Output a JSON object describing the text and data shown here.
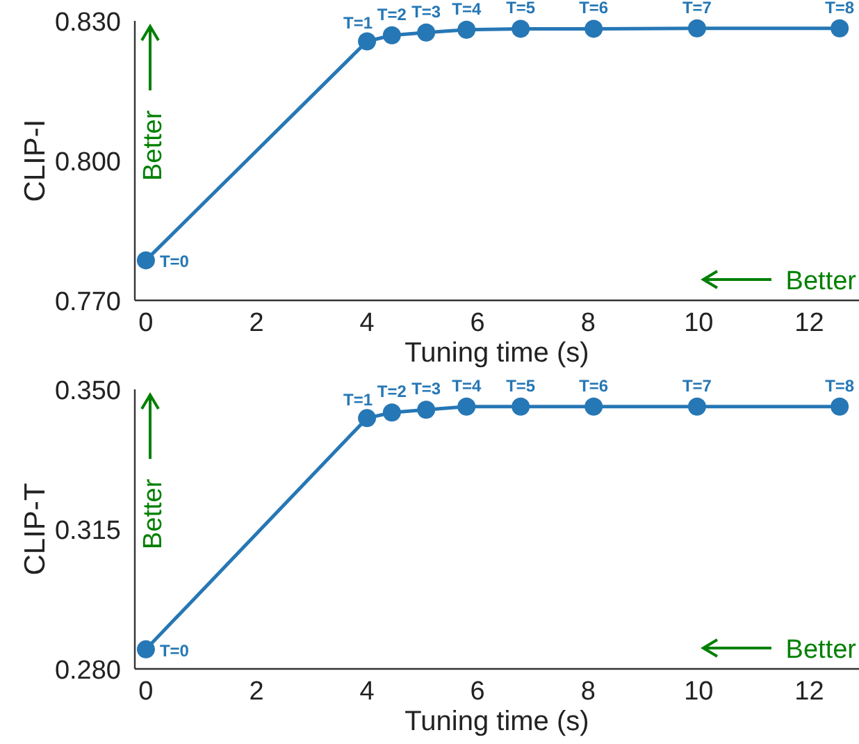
{
  "chart_data": [
    {
      "type": "line",
      "xlabel": "Tuning time (s)",
      "ylabel": "CLIP-I",
      "xlim": [
        -0.2,
        12.9
      ],
      "xticks": [
        0,
        2,
        4,
        6,
        8,
        10,
        12
      ],
      "ylim": [
        0.77,
        0.83
      ],
      "yticks": [
        {
          "value": 0.77,
          "label": "0.770"
        },
        {
          "value": 0.8,
          "label": "0.800"
        },
        {
          "value": 0.83,
          "label": "0.830"
        }
      ],
      "grid": false,
      "marker": "circle",
      "line_style": "solid",
      "annotations": [
        "Better",
        "Better",
        {
          "text": "T=0",
          "x": 0,
          "y": 0.7786
        },
        {
          "text": "T=1",
          "x": 4.0,
          "y": 0.8256
        },
        {
          "text": "T=2",
          "x": 4.45,
          "y": 0.8269
        },
        {
          "text": "T=3",
          "x": 5.07,
          "y": 0.8275
        },
        {
          "text": "T=4",
          "x": 5.8,
          "y": 0.8281
        },
        {
          "text": "T=5",
          "x": 6.78,
          "y": 0.8283
        },
        {
          "text": "T=6",
          "x": 8.1,
          "y": 0.8283
        },
        {
          "text": "T=7",
          "x": 9.97,
          "y": 0.8284
        },
        {
          "text": "T=8",
          "x": 12.55,
          "y": 0.8284
        }
      ],
      "series": [
        {
          "color": "#2677b5",
          "x": [
            0,
            4.0,
            4.45,
            5.07,
            5.8,
            6.78,
            8.1,
            9.97,
            12.55
          ],
          "values": [
            0.7786,
            0.8256,
            0.8269,
            0.8275,
            0.8281,
            0.8283,
            0.8283,
            0.8284,
            0.8284
          ]
        }
      ]
    },
    {
      "type": "line",
      "xlabel": "Tuning time (s)",
      "ylabel": "CLIP-T",
      "xlim": [
        -0.2,
        12.9
      ],
      "xticks": [
        0,
        2,
        4,
        6,
        8,
        10,
        12
      ],
      "ylim": [
        0.28,
        0.35
      ],
      "yticks": [
        {
          "value": 0.28,
          "label": "0.280"
        },
        {
          "value": 0.315,
          "label": "0.315"
        },
        {
          "value": 0.35,
          "label": "0.350"
        }
      ],
      "grid": false,
      "marker": "circle",
      "line_style": "solid",
      "annotations": [
        "Better",
        "Better",
        {
          "text": "T=0",
          "x": 0,
          "y": 0.2849
        },
        {
          "text": "T=1",
          "x": 4.0,
          "y": 0.3428
        },
        {
          "text": "T=2",
          "x": 4.45,
          "y": 0.3442
        },
        {
          "text": "T=3",
          "x": 5.07,
          "y": 0.3449
        },
        {
          "text": "T=4",
          "x": 5.8,
          "y": 0.3457
        },
        {
          "text": "T=5",
          "x": 6.78,
          "y": 0.3457
        },
        {
          "text": "T=6",
          "x": 8.1,
          "y": 0.3457
        },
        {
          "text": "T=7",
          "x": 9.97,
          "y": 0.3457
        },
        {
          "text": "T=8",
          "x": 12.55,
          "y": 0.3457
        }
      ],
      "series": [
        {
          "color": "#2677b5",
          "x": [
            0,
            4.0,
            4.45,
            5.07,
            5.8,
            6.78,
            8.1,
            9.97,
            12.55
          ],
          "values": [
            0.2849,
            0.3428,
            0.3442,
            0.3449,
            0.3457,
            0.3457,
            0.3457,
            0.3457,
            0.3457
          ]
        }
      ]
    }
  ]
}
